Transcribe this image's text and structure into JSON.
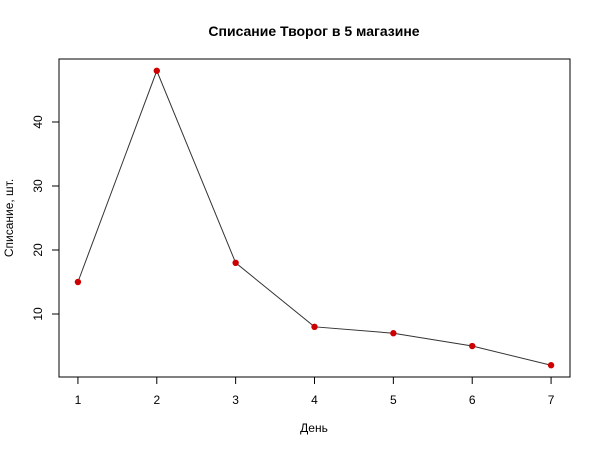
{
  "chart_data": {
    "type": "line",
    "title": "Списание Творог в 5 магазине",
    "xlabel": "День",
    "ylabel": "Списание, шт.",
    "x": [
      1,
      2,
      3,
      4,
      5,
      6,
      7
    ],
    "series": [
      {
        "values": [
          15,
          48,
          18,
          8,
          7,
          5,
          2
        ]
      }
    ],
    "x_ticks": [
      1,
      2,
      3,
      4,
      5,
      6,
      7
    ],
    "y_ticks": [
      10,
      20,
      30,
      40
    ],
    "xlim": [
      0.76,
      7.24
    ],
    "ylim": [
      0.16,
      49.84
    ],
    "grid": false,
    "colors": {
      "point": "#cc0000",
      "line": "#333333"
    }
  }
}
